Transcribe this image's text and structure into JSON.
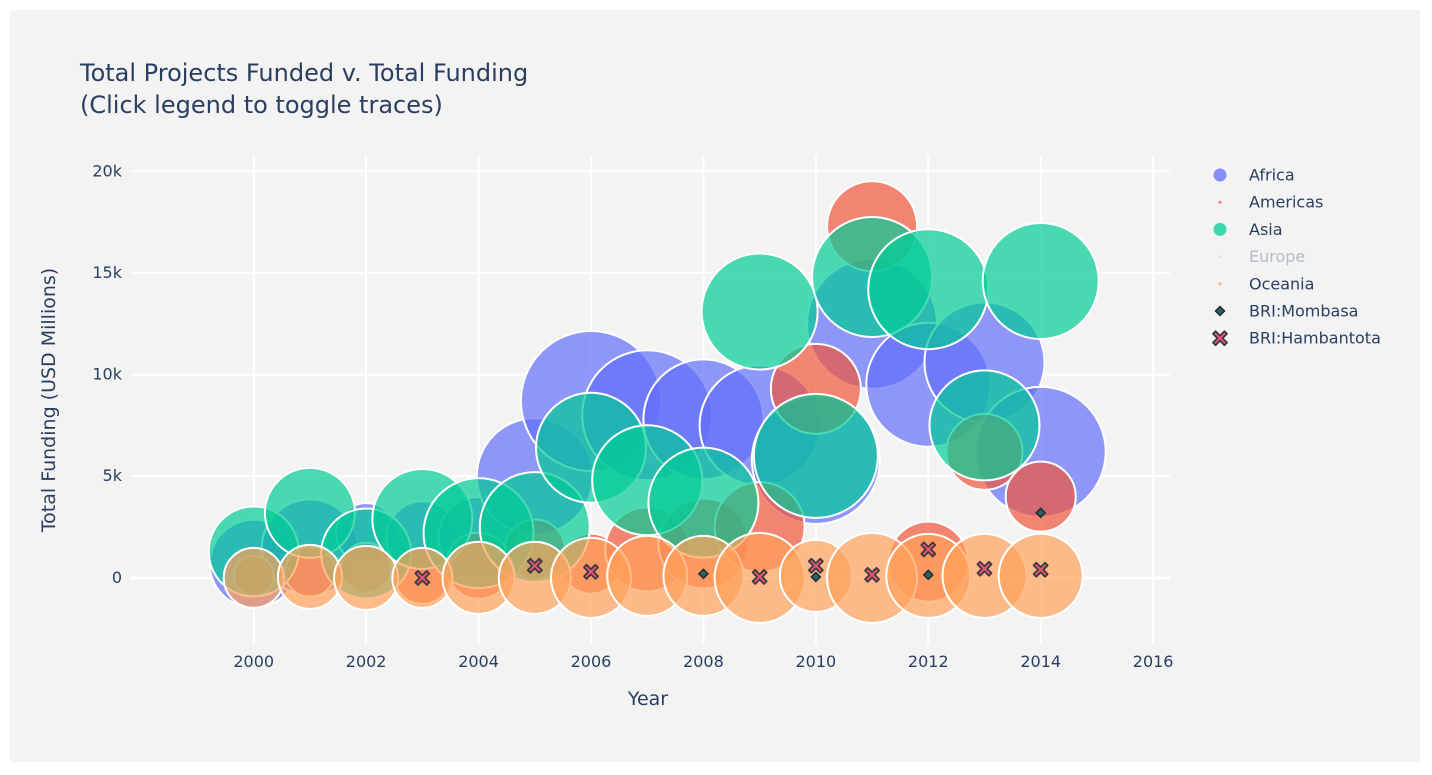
{
  "chart_data": {
    "type": "scatter",
    "title_lines": [
      "Total Projects Funded v. Total Funding",
      "(Click legend to toggle traces)"
    ],
    "xlabel": "Year",
    "ylabel": "Total Funding (USD Millions)",
    "xlim": [
      1998.6,
      2016.3
    ],
    "ylim": [
      -3300,
      20800
    ],
    "x_ticks": [
      2000,
      2002,
      2004,
      2006,
      2008,
      2010,
      2012,
      2014,
      2016
    ],
    "x_tick_labels": [
      "2000",
      "2002",
      "2004",
      "2006",
      "2008",
      "2010",
      "2012",
      "2014",
      "2016"
    ],
    "y_ticks": [
      0,
      5000,
      10000,
      15000,
      20000
    ],
    "y_tick_labels": [
      "0",
      "5k",
      "10k",
      "15k",
      "20k"
    ],
    "grid": true,
    "legend_position": "right",
    "series": [
      {
        "name": "Africa",
        "color": "#636efa",
        "marker": "bubble",
        "visible": true,
        "points": [
          {
            "x": 2000,
            "y": 700,
            "r": 44
          },
          {
            "x": 2001,
            "y": 1500,
            "r": 48
          },
          {
            "x": 2002,
            "y": 2200,
            "r": 30
          },
          {
            "x": 2003,
            "y": 2000,
            "r": 36
          },
          {
            "x": 2004,
            "y": 2000,
            "r": 40
          },
          {
            "x": 2005,
            "y": 5000,
            "r": 58
          },
          {
            "x": 2006,
            "y": 8700,
            "r": 70
          },
          {
            "x": 2007,
            "y": 8000,
            "r": 65
          },
          {
            "x": 2008,
            "y": 7800,
            "r": 60
          },
          {
            "x": 2009,
            "y": 7500,
            "r": 60
          },
          {
            "x": 2010,
            "y": 5800,
            "r": 64
          },
          {
            "x": 2011,
            "y": 12500,
            "r": 65
          },
          {
            "x": 2012,
            "y": 9500,
            "r": 62
          },
          {
            "x": 2013,
            "y": 10600,
            "r": 60
          },
          {
            "x": 2014,
            "y": 6200,
            "r": 65
          }
        ]
      },
      {
        "name": "Americas",
        "color": "#ef553b",
        "marker": "bubble",
        "visible": true,
        "points": [
          {
            "x": 2000,
            "y": 100,
            "r": 20
          },
          {
            "x": 2001,
            "y": 300,
            "r": 25
          },
          {
            "x": 2002,
            "y": 500,
            "r": 25
          },
          {
            "x": 2003,
            "y": 100,
            "r": 28
          },
          {
            "x": 2004,
            "y": 600,
            "r": 33
          },
          {
            "x": 2005,
            "y": 1400,
            "r": 30
          },
          {
            "x": 2006,
            "y": 700,
            "r": 30
          },
          {
            "x": 2007,
            "y": 1400,
            "r": 42
          },
          {
            "x": 2008,
            "y": 1700,
            "r": 45
          },
          {
            "x": 2009,
            "y": 2500,
            "r": 45
          },
          {
            "x": 2010,
            "y": 9300,
            "r": 45
          },
          {
            "x": 2011,
            "y": 17300,
            "r": 45
          },
          {
            "x": 2012,
            "y": 800,
            "r": 40
          },
          {
            "x": 2013,
            "y": 6200,
            "r": 38
          },
          {
            "x": 2014,
            "y": 4000,
            "r": 35
          }
        ]
      },
      {
        "name": "Asia",
        "color": "#00cc96",
        "marker": "bubble",
        "visible": true,
        "points": [
          {
            "x": 2000,
            "y": 1300,
            "r": 45
          },
          {
            "x": 2001,
            "y": 3200,
            "r": 45
          },
          {
            "x": 2002,
            "y": 1200,
            "r": 45
          },
          {
            "x": 2003,
            "y": 2900,
            "r": 50
          },
          {
            "x": 2004,
            "y": 2200,
            "r": 55
          },
          {
            "x": 2005,
            "y": 2500,
            "r": 55
          },
          {
            "x": 2006,
            "y": 6400,
            "r": 55
          },
          {
            "x": 2007,
            "y": 4800,
            "r": 55
          },
          {
            "x": 2008,
            "y": 3700,
            "r": 55
          },
          {
            "x": 2009,
            "y": 13100,
            "r": 58
          },
          {
            "x": 2010,
            "y": 6000,
            "r": 62
          },
          {
            "x": 2011,
            "y": 14800,
            "r": 60
          },
          {
            "x": 2012,
            "y": 14200,
            "r": 60
          },
          {
            "x": 2013,
            "y": 7500,
            "r": 55
          },
          {
            "x": 2014,
            "y": 14600,
            "r": 58
          }
        ]
      },
      {
        "name": "Europe",
        "color": "#ab63fa",
        "marker": "bubble",
        "visible": false,
        "points": []
      },
      {
        "name": "Oceania",
        "color": "#ffa15a",
        "marker": "bubble",
        "visible": true,
        "points": [
          {
            "x": 2000,
            "y": 0,
            "r": 30
          },
          {
            "x": 2001,
            "y": 50,
            "r": 32
          },
          {
            "x": 2002,
            "y": 0,
            "r": 32
          },
          {
            "x": 2003,
            "y": 0,
            "r": 30
          },
          {
            "x": 2004,
            "y": 0,
            "r": 36
          },
          {
            "x": 2005,
            "y": 0,
            "r": 36
          },
          {
            "x": 2006,
            "y": 0,
            "r": 40
          },
          {
            "x": 2007,
            "y": 100,
            "r": 40
          },
          {
            "x": 2008,
            "y": 100,
            "r": 40
          },
          {
            "x": 2009,
            "y": 0,
            "r": 45
          },
          {
            "x": 2010,
            "y": 100,
            "r": 36
          },
          {
            "x": 2011,
            "y": 0,
            "r": 45
          },
          {
            "x": 2012,
            "y": 100,
            "r": 42
          },
          {
            "x": 2013,
            "y": 100,
            "r": 42
          },
          {
            "x": 2014,
            "y": 100,
            "r": 42
          }
        ]
      },
      {
        "name": "BRI:Mombasa",
        "color": "#2f5d62",
        "marker": "diamond",
        "visible": true,
        "points": [
          {
            "x": 2008,
            "y": 200
          },
          {
            "x": 2010,
            "y": 50
          },
          {
            "x": 2012,
            "y": 150
          },
          {
            "x": 2014,
            "y": 3200
          }
        ]
      },
      {
        "name": "BRI:Hambantota",
        "color": "#e8557d",
        "marker": "x",
        "visible": true,
        "points": [
          {
            "x": 2003,
            "y": 0
          },
          {
            "x": 2005,
            "y": 600
          },
          {
            "x": 2006,
            "y": 300
          },
          {
            "x": 2009,
            "y": 50
          },
          {
            "x": 2010,
            "y": 600
          },
          {
            "x": 2011,
            "y": 150
          },
          {
            "x": 2012,
            "y": 1400
          },
          {
            "x": 2013,
            "y": 450
          },
          {
            "x": 2014,
            "y": 400
          }
        ]
      }
    ]
  }
}
